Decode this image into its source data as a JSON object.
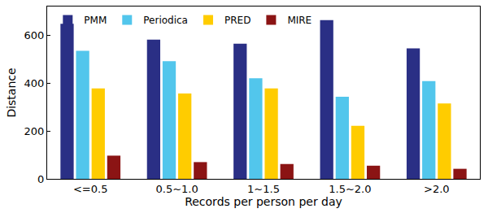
{
  "chart_data": {
    "type": "bar",
    "x_label": "Records per person per day",
    "y_label": "Distance",
    "categories": [
      "<=0.5",
      "0.5~1.0",
      "1~1.5",
      "1.5~2.0",
      ">2.0"
    ],
    "series": [
      {
        "name": "PMM",
        "color": "#2a2f85",
        "values": [
          648,
          582,
          565,
          663,
          545
        ]
      },
      {
        "name": "Periodica",
        "color": "#52c6ec",
        "values": [
          535,
          492,
          420,
          343,
          408
        ]
      },
      {
        "name": "PRED",
        "color": "#ffcc00",
        "values": [
          378,
          357,
          378,
          222,
          315
        ]
      },
      {
        "name": "MIRE",
        "color": "#8b1414",
        "values": [
          97,
          70,
          62,
          55,
          42
        ]
      }
    ],
    "ylim": [
      0,
      720
    ],
    "yticks": [
      0,
      200,
      400,
      600
    ],
    "grid": false,
    "legend": "top left"
  }
}
